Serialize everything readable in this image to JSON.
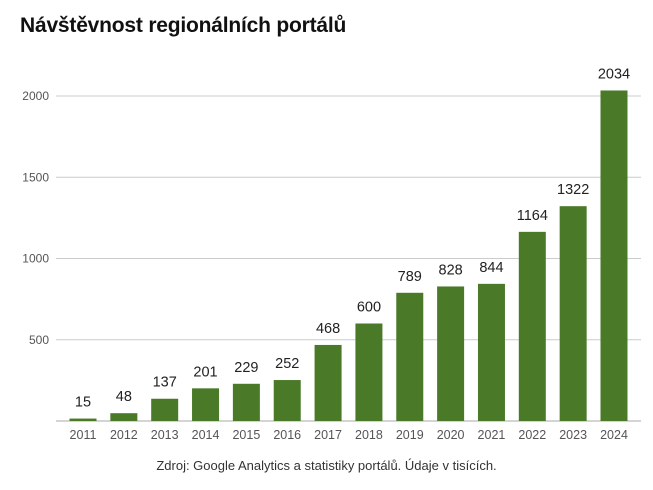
{
  "chart_data": {
    "type": "bar",
    "title": "Návštěvnost regionálních portálů",
    "source_note": "Zdroj: Google Analytics a statistiky portálů. Údaje v tisících.",
    "categories": [
      "2011",
      "2012",
      "2013",
      "2014",
      "2015",
      "2016",
      "2017",
      "2018",
      "2019",
      "2020",
      "2021",
      "2022",
      "2023",
      "2024"
    ],
    "values": [
      15,
      48,
      137,
      201,
      229,
      252,
      468,
      600,
      789,
      828,
      844,
      1164,
      1322,
      2034
    ],
    "data_labels": [
      "15",
      "48",
      "137",
      "201",
      "229",
      "252",
      "468",
      "600",
      "789",
      "828",
      "844",
      "1164",
      "1322",
      "2034"
    ],
    "yticks": [
      500,
      1000,
      1500,
      2000
    ],
    "ytick_labels": [
      "500",
      "1000",
      "1500",
      "2000"
    ],
    "ylim": [
      0,
      2200
    ],
    "xlabel": "",
    "ylabel": "",
    "grid": true,
    "legend": "none",
    "bar_color": "#4a7a28"
  }
}
